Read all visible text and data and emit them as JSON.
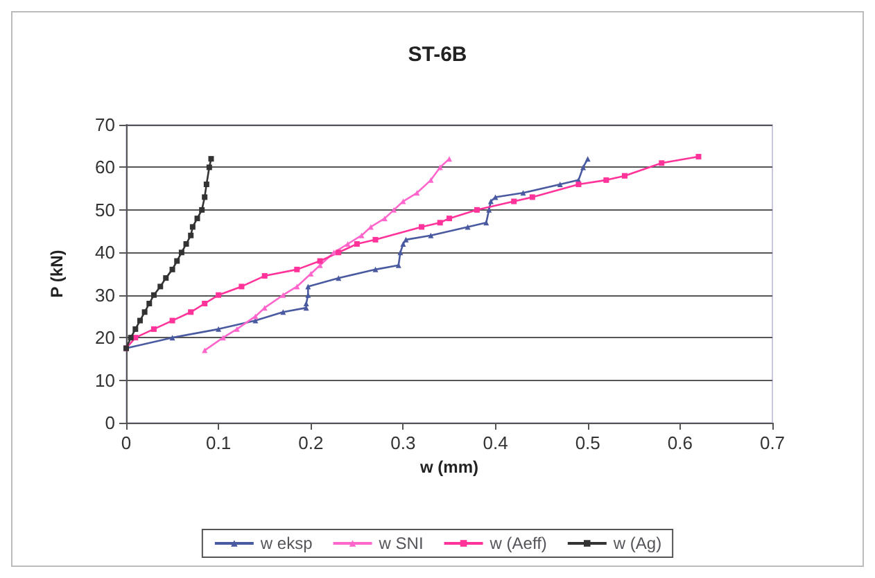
{
  "chart_data": {
    "type": "line",
    "title": "ST-6B",
    "xlabel": "w (mm)",
    "ylabel": "P (kN)",
    "xlim": [
      0,
      0.7
    ],
    "xticks": [
      0,
      0.1,
      0.2,
      0.3,
      0.4,
      0.5,
      0.6,
      0.7
    ],
    "ylim": [
      0,
      70
    ],
    "yticks": [
      0,
      10,
      20,
      30,
      40,
      50,
      60,
      70
    ],
    "grid": "y",
    "legend": "bottom",
    "series": [
      {
        "name": "w eksp",
        "color": "#4a5aa0",
        "marker": "triangle",
        "x": [
          0,
          0.05,
          0.1,
          0.14,
          0.17,
          0.195,
          0.195,
          0.197,
          0.197,
          0.23,
          0.27,
          0.295,
          0.297,
          0.3,
          0.303,
          0.33,
          0.37,
          0.39,
          0.393,
          0.395,
          0.4,
          0.43,
          0.47,
          0.49,
          0.495,
          0.5
        ],
        "values": [
          17.5,
          20,
          22,
          24,
          26,
          27,
          28,
          30,
          32,
          34,
          36,
          37,
          40,
          42,
          43,
          44,
          46,
          47,
          50,
          52,
          53,
          54,
          56,
          57,
          60,
          62
        ]
      },
      {
        "name": "w SNI",
        "color": "#ff66cc",
        "marker": "triangle",
        "x": [
          0.085,
          0.105,
          0.12,
          0.14,
          0.15,
          0.17,
          0.185,
          0.2,
          0.21,
          0.225,
          0.24,
          0.255,
          0.265,
          0.28,
          0.29,
          0.3,
          0.315,
          0.33,
          0.34,
          0.35
        ],
        "values": [
          17,
          20,
          22,
          25,
          27,
          30,
          32,
          35,
          37,
          40,
          42,
          44,
          46,
          48,
          50,
          52,
          54,
          57,
          60,
          62
        ]
      },
      {
        "name": "w (Aeff)",
        "color": "#ff3399",
        "marker": "square",
        "x": [
          0,
          0.01,
          0.03,
          0.05,
          0.07,
          0.085,
          0.1,
          0.125,
          0.15,
          0.185,
          0.21,
          0.23,
          0.25,
          0.27,
          0.32,
          0.34,
          0.35,
          0.38,
          0.42,
          0.44,
          0.49,
          0.52,
          0.54,
          0.58,
          0.62
        ],
        "values": [
          17.5,
          20,
          22,
          24,
          26,
          28,
          30,
          32,
          34.5,
          36,
          38,
          40,
          42,
          43,
          46,
          47,
          48,
          50,
          52,
          53,
          56,
          57,
          58,
          61,
          62.5
        ]
      },
      {
        "name": "w (Ag)",
        "color": "#333333",
        "marker": "square",
        "x": [
          0,
          0.005,
          0.01,
          0.015,
          0.02,
          0.025,
          0.03,
          0.037,
          0.043,
          0.05,
          0.055,
          0.06,
          0.065,
          0.07,
          0.072,
          0.077,
          0.082,
          0.085,
          0.087,
          0.09,
          0.092
        ],
        "values": [
          17.5,
          20,
          22,
          24,
          26,
          28,
          30,
          32,
          34,
          36,
          38,
          40,
          42,
          44,
          46,
          48,
          50,
          53,
          56,
          60,
          62
        ]
      }
    ]
  }
}
